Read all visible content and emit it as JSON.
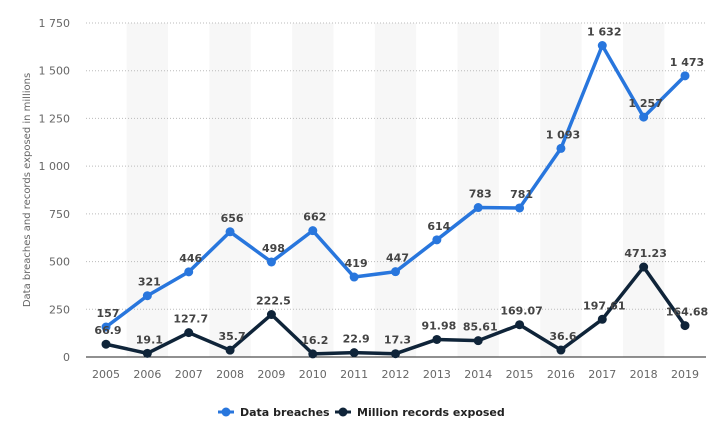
{
  "chart_data": {
    "type": "line",
    "title": "",
    "xlabel": "",
    "ylabel": "Data breaches and records exposed in millions",
    "categories": [
      "2005",
      "2006",
      "2007",
      "2008",
      "2009",
      "2010",
      "2011",
      "2012",
      "2013",
      "2014",
      "2015",
      "2016",
      "2017",
      "2018",
      "2019"
    ],
    "ylim": [
      0,
      1750
    ],
    "yticks": [
      0,
      250,
      500,
      750,
      1000,
      1250,
      1500,
      1750
    ],
    "ytick_labels": [
      "0",
      "250",
      "500",
      "750",
      "1 000",
      "1 250",
      "1 500",
      "1 750"
    ],
    "grid": true,
    "legend_position": "bottom",
    "series": [
      {
        "name": "Data breaches",
        "color": "#2876dd",
        "values": [
          157,
          321,
          446,
          656,
          498,
          662,
          419,
          447,
          614,
          783,
          781,
          1093,
          1632,
          1257,
          1473
        ],
        "labels": [
          "157",
          "321",
          "446",
          "656",
          "498",
          "662",
          "419",
          "447",
          "614",
          "783",
          "781",
          "1 093",
          "1 632",
          "1 257",
          "1 473"
        ]
      },
      {
        "name": "Million records exposed",
        "color": "#0f2439",
        "values": [
          66.9,
          19.1,
          127.7,
          35.7,
          222.5,
          16.2,
          22.9,
          17.3,
          91.98,
          85.61,
          169.07,
          36.6,
          197.61,
          471.23,
          164.68
        ],
        "labels": [
          "66.9",
          "19.1",
          "127.7",
          "35.7",
          "222.5",
          "16.2",
          "22.9",
          "17.3",
          "91.98",
          "85.61",
          "169.07",
          "36.6",
          "197.61",
          "471.23",
          "164.68"
        ]
      }
    ]
  }
}
